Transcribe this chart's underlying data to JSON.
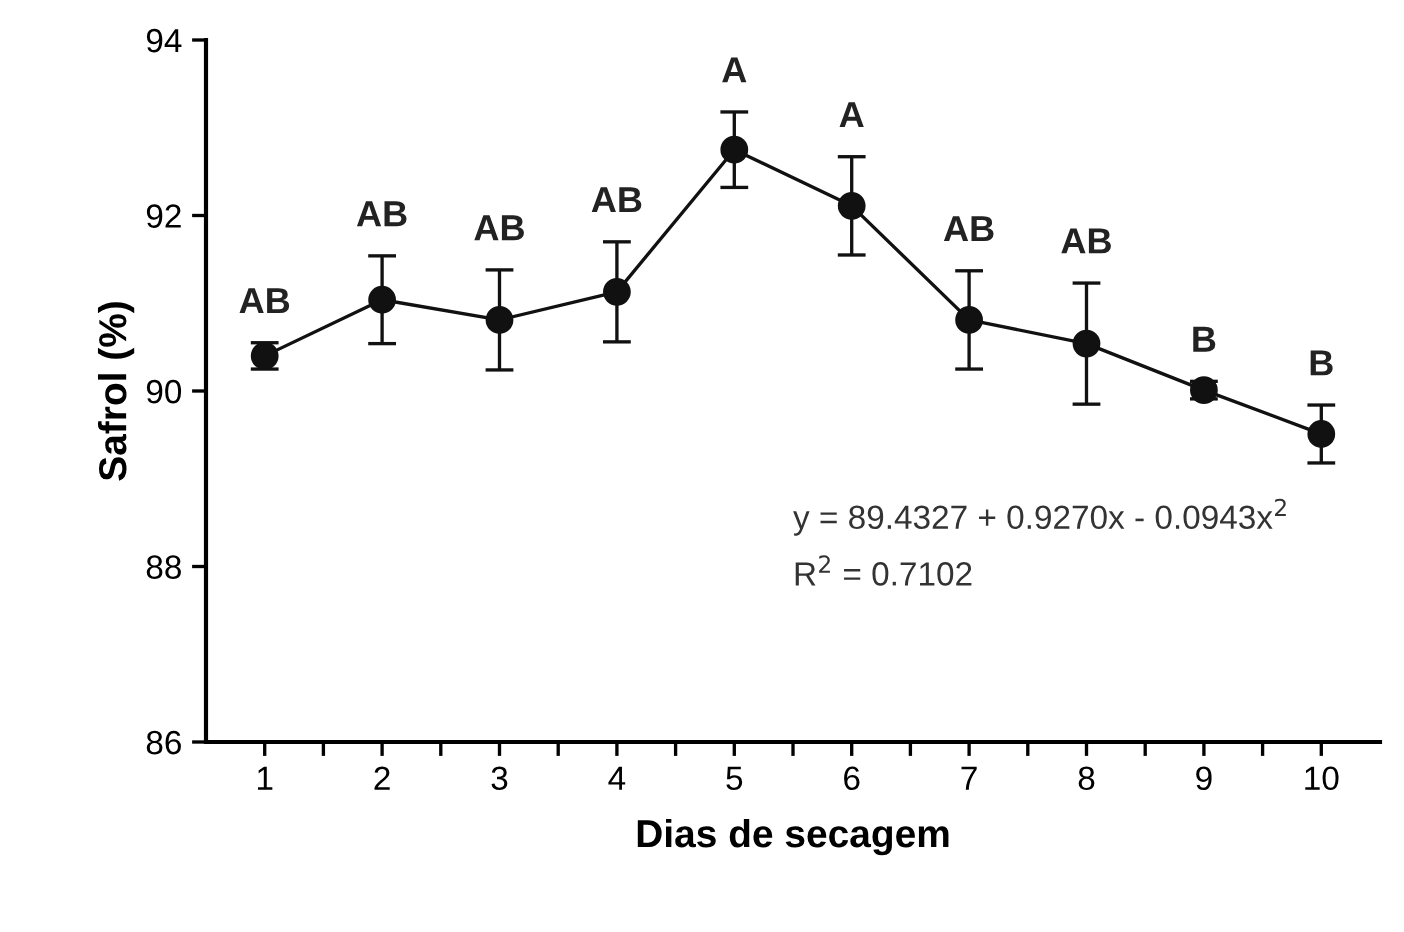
{
  "chart_data": {
    "type": "line",
    "xlabel": "Dias de secagem",
    "ylabel": "Safrol (%)",
    "categories": [
      "1",
      "2",
      "3",
      "4",
      "5",
      "6",
      "7",
      "8",
      "9",
      "10"
    ],
    "series": [
      {
        "color": "#111111",
        "values": [
          90.4,
          91.04,
          90.81,
          91.13,
          92.75,
          92.11,
          90.81,
          90.54,
          90.01,
          89.51
        ],
        "errors": [
          0.15,
          0.5,
          0.57,
          0.57,
          0.43,
          0.56,
          0.56,
          0.69,
          0.1,
          0.33
        ]
      }
    ],
    "ylim": [
      86,
      94
    ],
    "yticks": [
      86,
      88,
      90,
      92,
      94
    ],
    "marker": "circle",
    "line_style": "solid",
    "grid": false,
    "legend": false,
    "annotations": [
      {
        "text": "AB",
        "x": "1",
        "y": 90.55
      },
      {
        "text": "AB",
        "x": "2",
        "y": 91.54
      },
      {
        "text": "AB",
        "x": "3",
        "y": 91.38
      },
      {
        "text": "AB",
        "x": "4",
        "y": 91.7
      },
      {
        "text": "A",
        "x": "5",
        "y": 93.18
      },
      {
        "text": "A",
        "x": "6",
        "y": 92.67
      },
      {
        "text": "AB",
        "x": "7",
        "y": 91.37
      },
      {
        "text": "AB",
        "x": "8",
        "y": 91.23
      },
      {
        "text": "B",
        "x": "9",
        "y": 90.11
      },
      {
        "text": "B",
        "x": "10",
        "y": 89.84
      },
      "y = 89.4327 + 0.9270x - 0.0943x$^{2}$",
      "R$^{2}$ = 0.7102"
    ]
  }
}
